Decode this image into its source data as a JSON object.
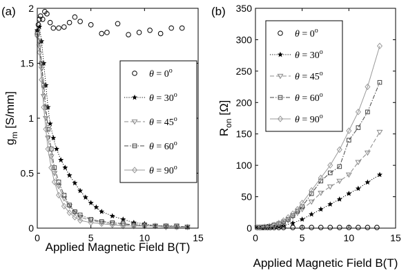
{
  "chart_data": [
    {
      "type": "scatter",
      "panel_label": "(a)",
      "xlabel": "Applied Magnetic Field B(T)",
      "ylabel_main": "g",
      "ylabel_sub": "m",
      "ylabel_unit": " [S/mm]",
      "xlim": [
        0,
        15
      ],
      "ylim": [
        0,
        2
      ],
      "xticks": [
        0,
        5,
        10,
        15
      ],
      "yticks": [
        0,
        0.5,
        1,
        1.5,
        2
      ],
      "xtick_labels": [
        "0",
        "5",
        "10",
        "15"
      ],
      "ytick_labels": [
        "0",
        "0.5",
        "1",
        "1.5",
        "2"
      ],
      "legend_position": "right",
      "series": [
        {
          "name": "θ = 0°",
          "theta": "0",
          "marker": "circle",
          "line": "none",
          "color": "#000000",
          "x": [
            0.1,
            0.2,
            0.3,
            0.5,
            0.7,
            0.9,
            1.2,
            1.5,
            2,
            2.5,
            3,
            3.5,
            4,
            5,
            6,
            6.5,
            7.5,
            8.5,
            9.5,
            10.5,
            11.5,
            12.5,
            13.5
          ],
          "y": [
            1.85,
            1.9,
            1.93,
            1.9,
            1.97,
            1.95,
            1.87,
            1.82,
            1.82,
            1.83,
            1.87,
            1.92,
            1.88,
            1.85,
            1.77,
            1.78,
            1.86,
            1.76,
            1.78,
            1.8,
            1.77,
            1.82,
            1.82
          ]
        },
        {
          "name": "θ = 30°",
          "theta": "30",
          "marker": "star",
          "line": "dotted",
          "color": "#000000",
          "x": [
            0,
            0.2,
            0.4,
            0.6,
            0.8,
            1,
            1.2,
            1.5,
            1.8,
            2.2,
            2.6,
            3,
            3.5,
            4,
            4.5,
            5,
            5.5,
            6,
            7,
            8,
            9,
            10,
            11,
            12,
            13,
            14
          ],
          "y": [
            1.8,
            1.83,
            1.7,
            1.5,
            1.3,
            1.1,
            0.95,
            0.82,
            0.72,
            0.62,
            0.55,
            0.48,
            0.41,
            0.34,
            0.28,
            0.23,
            0.19,
            0.15,
            0.11,
            0.08,
            0.05,
            0.04,
            0.02,
            0.02,
            0.01,
            0.01
          ]
        },
        {
          "name": "θ = 45°",
          "theta": "45",
          "marker": "triangle",
          "line": "dashed",
          "color": "#888888",
          "x": [
            0,
            0.2,
            0.4,
            0.6,
            0.8,
            1,
            1.3,
            1.6,
            2,
            2.5,
            3,
            3.5,
            4,
            5,
            6,
            7,
            8,
            9,
            10,
            11,
            12,
            13,
            14
          ],
          "y": [
            1.75,
            1.65,
            1.45,
            1.2,
            1.0,
            0.82,
            0.65,
            0.5,
            0.38,
            0.27,
            0.2,
            0.14,
            0.1,
            0.07,
            0.05,
            0.04,
            0.03,
            0.03,
            0.02,
            0.02,
            0.02,
            0.02,
            0.01
          ]
        },
        {
          "name": "θ = 60°",
          "theta": "60",
          "marker": "square",
          "line": "dashdot",
          "color": "#444444",
          "x": [
            0,
            0.2,
            0.4,
            0.6,
            0.8,
            1,
            1.3,
            1.6,
            2,
            2.5,
            3,
            3.5,
            4,
            5,
            6,
            7,
            8,
            9,
            10,
            11,
            12,
            13,
            14
          ],
          "y": [
            1.78,
            1.7,
            1.5,
            1.3,
            1.1,
            0.9,
            0.72,
            0.55,
            0.42,
            0.3,
            0.21,
            0.15,
            0.12,
            0.08,
            0.06,
            0.05,
            0.04,
            0.03,
            0.03,
            0.02,
            0.02,
            0.02,
            0.01
          ]
        },
        {
          "name": "θ = 90°",
          "theta": "90",
          "marker": "diamond",
          "line": "solid",
          "color": "#999999",
          "x": [
            0,
            0.2,
            0.4,
            0.6,
            0.8,
            1,
            1.3,
            1.6,
            2,
            2.5,
            3,
            3.5,
            4,
            5,
            6,
            7,
            8,
            9,
            10,
            11,
            12,
            13,
            14
          ],
          "y": [
            1.75,
            1.6,
            1.35,
            1.1,
            0.9,
            0.72,
            0.55,
            0.42,
            0.3,
            0.2,
            0.14,
            0.1,
            0.07,
            0.05,
            0.04,
            0.03,
            0.02,
            0.02,
            0.02,
            0.02,
            0.01,
            0.01,
            0.01
          ]
        }
      ]
    },
    {
      "type": "line",
      "panel_label": "(b)",
      "xlabel": "Applied Magnetic Field B(T)",
      "ylabel_main": "R",
      "ylabel_sub": "on",
      "ylabel_unit": " [Ω]",
      "xlim": [
        0,
        15
      ],
      "ylim": [
        0,
        350
      ],
      "xticks": [
        0,
        5,
        10,
        15
      ],
      "yticks": [
        0,
        50,
        100,
        150,
        200,
        250,
        300,
        350
      ],
      "xtick_labels": [
        "0",
        "5",
        "10",
        "15"
      ],
      "ytick_labels": [
        "0",
        "50",
        "100",
        "150",
        "200",
        "250",
        "300",
        "350"
      ],
      "legend_position": "top-left",
      "series": [
        {
          "name": "θ = 0°",
          "theta": "0",
          "marker": "circle",
          "line": "none",
          "color": "#000000",
          "x": [
            0.2,
            0.4,
            0.6,
            0.8,
            1,
            1.3,
            1.6,
            2,
            2.5,
            3,
            4,
            5,
            6,
            7,
            8,
            9,
            10,
            11,
            12,
            13
          ],
          "y": [
            1,
            1,
            1,
            1,
            1,
            1,
            1,
            1,
            1,
            1,
            1,
            1,
            1,
            1,
            1,
            1,
            1,
            1,
            1,
            1
          ]
        },
        {
          "name": "θ = 30°",
          "theta": "30",
          "marker": "star",
          "line": "dotted",
          "color": "#000000",
          "x": [
            0.2,
            0.5,
            1,
            1.5,
            2,
            2.5,
            3,
            4,
            5,
            6,
            7,
            8,
            9,
            10,
            11,
            12,
            13.3
          ],
          "y": [
            1,
            1,
            1,
            2,
            2,
            3,
            4,
            8,
            14,
            22,
            30,
            38,
            46,
            55,
            63,
            73,
            85
          ]
        },
        {
          "name": "θ = 45°",
          "theta": "45",
          "marker": "triangle",
          "line": "dashed",
          "color": "#888888",
          "x": [
            0.2,
            0.5,
            1,
            1.5,
            2,
            2.5,
            3,
            3.5,
            4,
            4.5,
            5,
            6,
            7,
            8,
            9,
            10,
            11,
            12,
            13.3
          ],
          "y": [
            1,
            1,
            2,
            3,
            4,
            6,
            8,
            12,
            18,
            24,
            30,
            42,
            56,
            66,
            75,
            85,
            105,
            120,
            153
          ]
        },
        {
          "name": "θ = 60°",
          "theta": "60",
          "marker": "square",
          "line": "dashdot",
          "color": "#444444",
          "x": [
            0.2,
            0.5,
            1,
            1.5,
            2,
            2.5,
            3,
            3.5,
            4,
            4.5,
            5,
            6,
            7,
            8,
            9,
            10,
            11,
            12,
            13.3
          ],
          "y": [
            1,
            1,
            2,
            3,
            5,
            7,
            10,
            14,
            20,
            27,
            34,
            55,
            75,
            88,
            98,
            140,
            160,
            185,
            232
          ]
        },
        {
          "name": "θ = 90°",
          "theta": "90",
          "marker": "diamond",
          "line": "solid",
          "color": "#999999",
          "x": [
            0.2,
            0.5,
            1,
            1.5,
            2,
            2.5,
            3,
            3.5,
            4,
            4.5,
            5,
            6,
            7,
            8,
            9,
            10,
            11,
            12,
            13.3
          ],
          "y": [
            1,
            1,
            2,
            3,
            5,
            8,
            12,
            17,
            23,
            30,
            40,
            60,
            80,
            100,
            125,
            155,
            185,
            225,
            290
          ]
        }
      ]
    }
  ]
}
